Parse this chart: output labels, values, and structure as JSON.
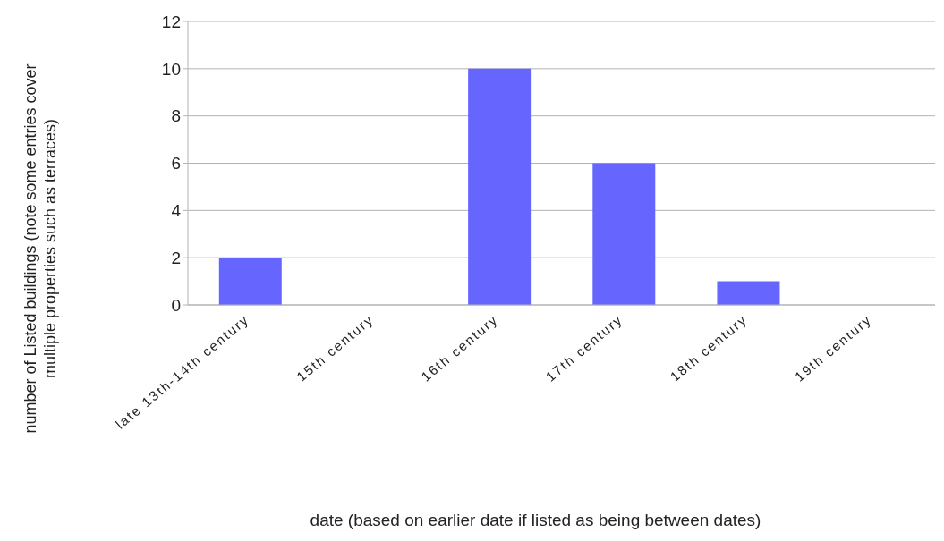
{
  "chart_data": {
    "type": "bar",
    "categories": [
      "late 13th-14th century",
      "15th century",
      "16th century",
      "17th century",
      "18th century",
      "19th century"
    ],
    "values": [
      2,
      0,
      10,
      6,
      1,
      0
    ],
    "color": "#6666ff",
    "xlabel": "date (based on earlier date if listed as being between dates)",
    "ylabel": "number of Listed buildings (note some entries cover multiple properties such as terraces)",
    "ylim": [
      0,
      12
    ],
    "yticks": [
      0,
      2,
      4,
      6,
      8,
      10,
      12
    ],
    "grid": "y"
  }
}
